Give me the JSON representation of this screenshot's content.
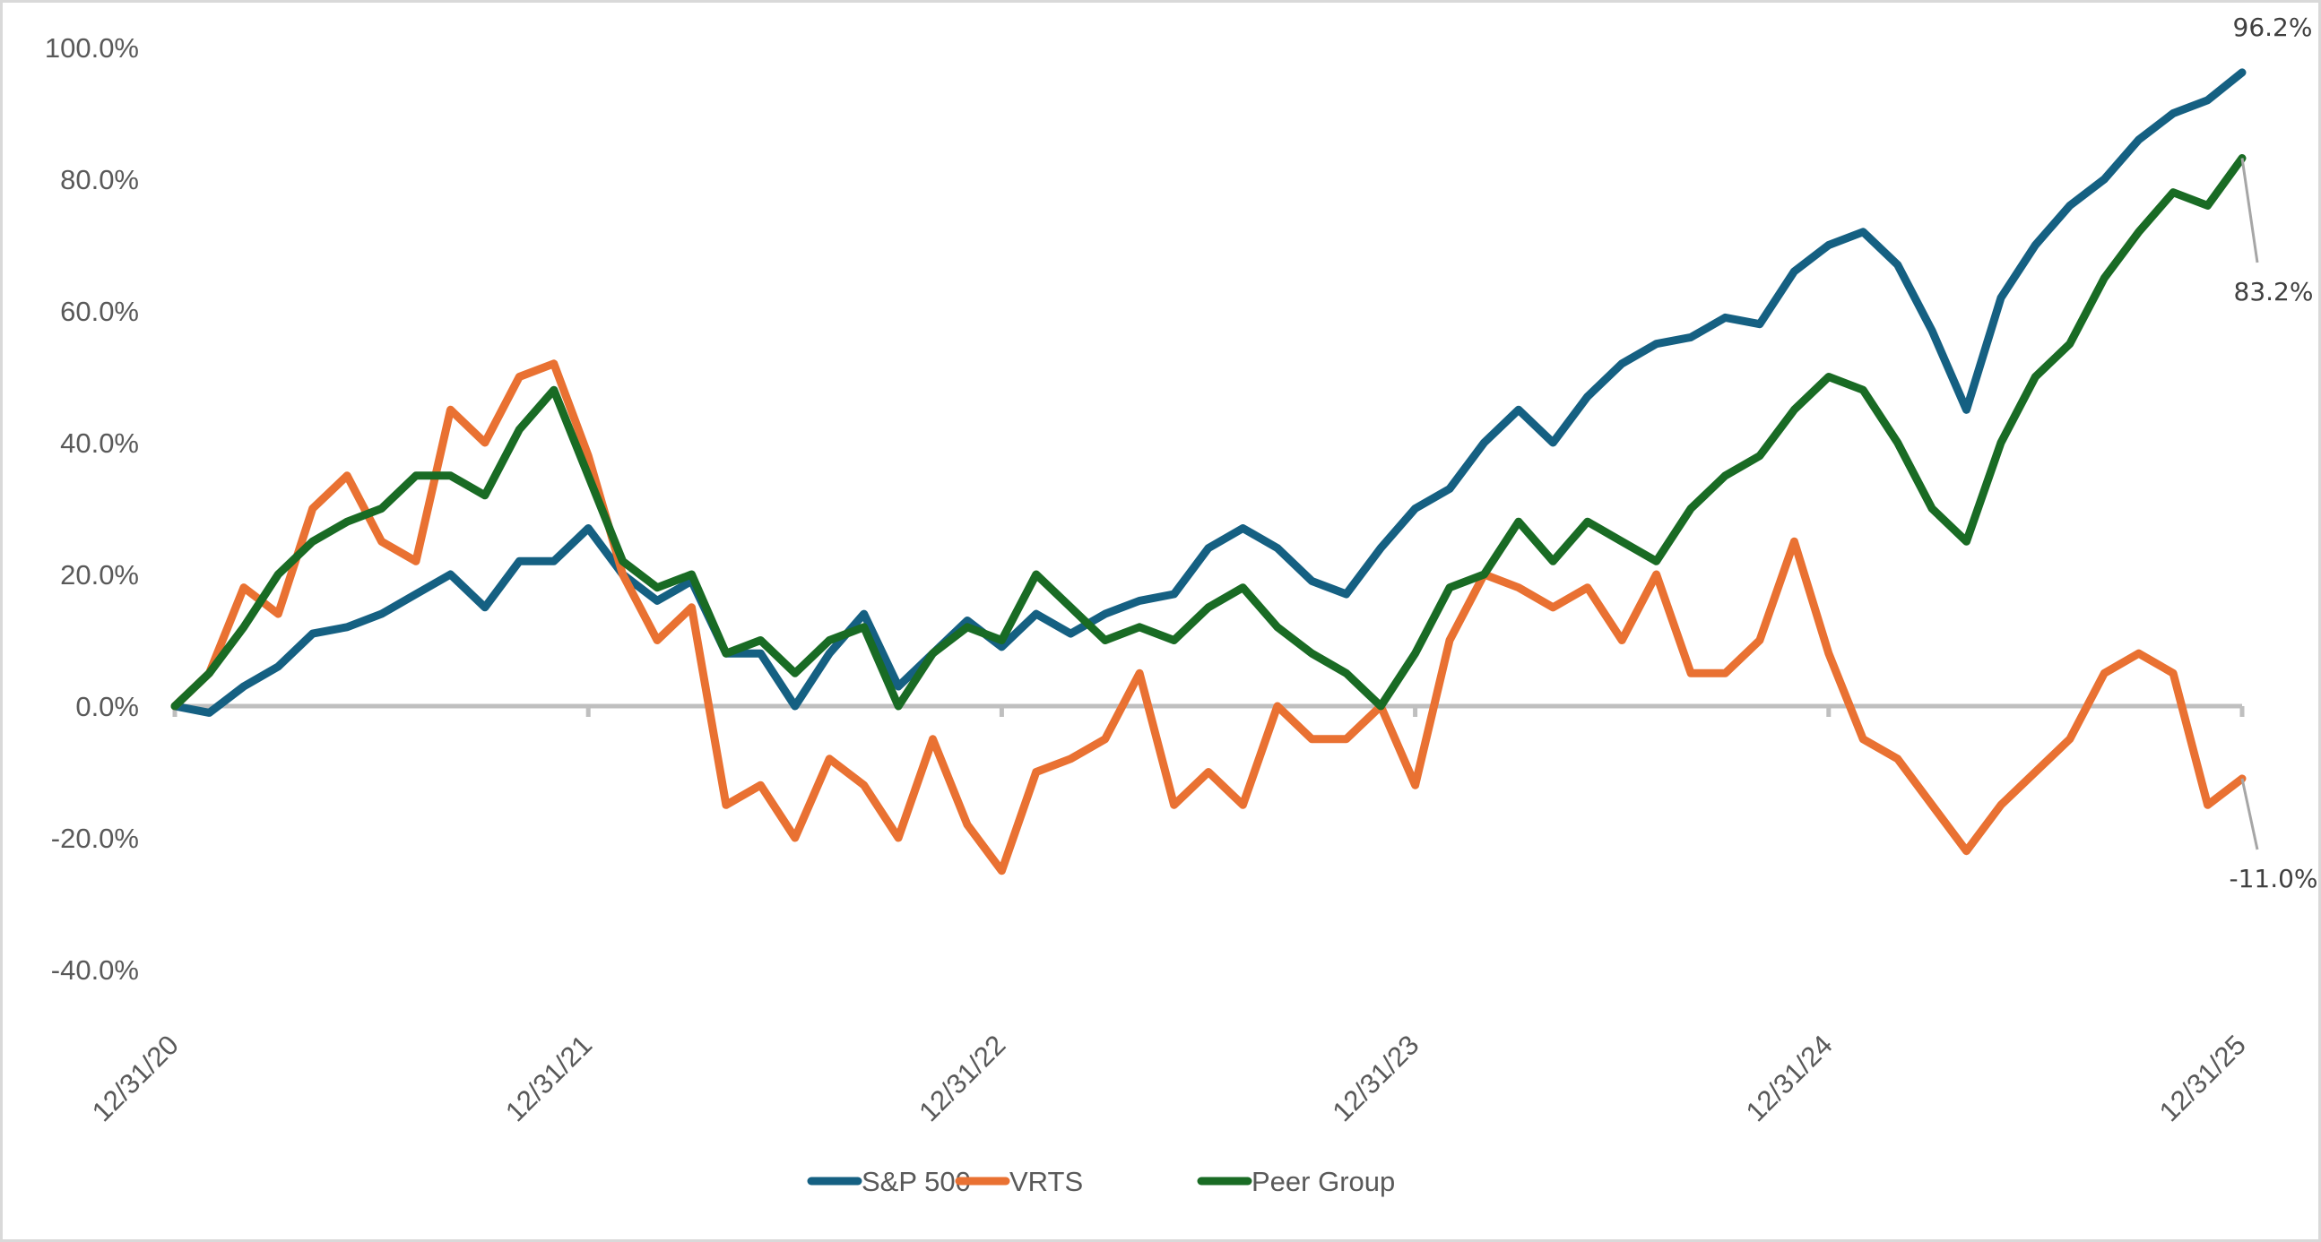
{
  "chart_data": {
    "type": "line",
    "title": "",
    "xlabel": "",
    "ylabel": "",
    "ylim": [
      -40,
      100
    ],
    "y_ticks": [
      "100.0%",
      "80.0%",
      "60.0%",
      "40.0%",
      "20.0%",
      "0.0%",
      "-20.0%",
      "-40.0%"
    ],
    "y_tick_values": [
      100,
      80,
      60,
      40,
      20,
      0,
      -20,
      -40
    ],
    "x_ticks": [
      "12/31/20",
      "12/31/21",
      "12/31/22",
      "12/31/23",
      "12/31/24",
      "12/31/25"
    ],
    "x_range": [
      "2020-12-31",
      "2025-12-31"
    ],
    "x": [
      "2020-12",
      "2021-01",
      "2021-02",
      "2021-03",
      "2021-04",
      "2021-05",
      "2021-06",
      "2021-07",
      "2021-08",
      "2021-09",
      "2021-10",
      "2021-11",
      "2021-12",
      "2022-01",
      "2022-02",
      "2022-03",
      "2022-04",
      "2022-05",
      "2022-06",
      "2022-07",
      "2022-08",
      "2022-09",
      "2022-10",
      "2022-11",
      "2022-12",
      "2023-01",
      "2023-02",
      "2023-03",
      "2023-04",
      "2023-05",
      "2023-06",
      "2023-07",
      "2023-08",
      "2023-09",
      "2023-10",
      "2023-11",
      "2023-12",
      "2024-01",
      "2024-02",
      "2024-03",
      "2024-04",
      "2024-05",
      "2024-06",
      "2024-07",
      "2024-08",
      "2024-09",
      "2024-10",
      "2024-11",
      "2024-12",
      "2025-01",
      "2025-02",
      "2025-03",
      "2025-04",
      "2025-05",
      "2025-06",
      "2025-07",
      "2025-08",
      "2025-09",
      "2025-10",
      "2025-11",
      "2025-12"
    ],
    "grid": false,
    "legend_position": "bottom",
    "series": [
      {
        "name": "S&P 500",
        "color": "#156082",
        "end_label": "96.2%",
        "values": [
          0,
          -1,
          3,
          6,
          11,
          12,
          14,
          17,
          20,
          15,
          22,
          22,
          27,
          20,
          16,
          19,
          8,
          8,
          0,
          8,
          14,
          3,
          8,
          13,
          9,
          14,
          11,
          14,
          16,
          17,
          24,
          27,
          24,
          19,
          17,
          24,
          30,
          33,
          40,
          45,
          40,
          47,
          52,
          55,
          56,
          59,
          58,
          66,
          70,
          72,
          67,
          57,
          45,
          62,
          70,
          76,
          80,
          86,
          90,
          92,
          96.2
        ]
      },
      {
        "name": "VRTS",
        "color": "#E97132",
        "end_label": "-11.0%",
        "values": [
          0,
          5,
          18,
          14,
          30,
          35,
          25,
          22,
          45,
          40,
          50,
          52,
          38,
          20,
          10,
          15,
          -15,
          -12,
          -20,
          -8,
          -12,
          -20,
          -5,
          -18,
          -25,
          -10,
          -8,
          -5,
          5,
          -15,
          -10,
          -15,
          0,
          -5,
          -5,
          0,
          -12,
          10,
          20,
          18,
          15,
          18,
          10,
          20,
          5,
          5,
          10,
          25,
          8,
          -5,
          -8,
          -15,
          -22,
          -15,
          -10,
          -5,
          5,
          8,
          5,
          -15,
          -11
        ]
      },
      {
        "name": "Peer Group",
        "color": "#196B24",
        "end_label": "83.2%",
        "values": [
          0,
          5,
          12,
          20,
          25,
          28,
          30,
          35,
          35,
          32,
          42,
          48,
          35,
          22,
          18,
          20,
          8,
          10,
          5,
          10,
          12,
          0,
          8,
          12,
          10,
          20,
          15,
          10,
          12,
          10,
          15,
          18,
          12,
          8,
          5,
          0,
          8,
          18,
          20,
          28,
          22,
          28,
          25,
          22,
          30,
          35,
          38,
          45,
          50,
          48,
          40,
          30,
          25,
          40,
          50,
          55,
          65,
          72,
          78,
          76,
          83.2
        ]
      }
    ]
  },
  "axis_color": "#bfbfbf",
  "leader_color": "#a6a6a6"
}
